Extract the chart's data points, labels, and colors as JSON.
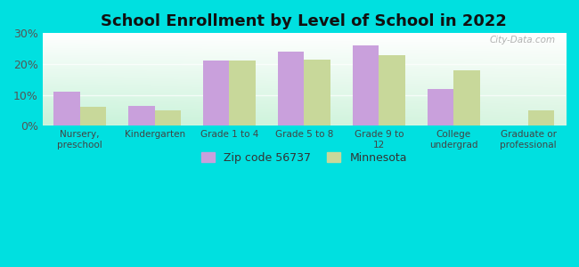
{
  "title": "School Enrollment by Level of School in 2022",
  "categories": [
    "Nursery,\npreschool",
    "Kindergarten",
    "Grade 1 to 4",
    "Grade 5 to 8",
    "Grade 9 to\n12",
    "College\nundergrad",
    "Graduate or\nprofessional"
  ],
  "zip_values": [
    11.0,
    6.5,
    21.0,
    24.0,
    26.0,
    12.0,
    0.0
  ],
  "mn_values": [
    6.0,
    5.0,
    21.0,
    21.5,
    23.0,
    18.0,
    5.0
  ],
  "zip_color": "#c9a0dc",
  "mn_color": "#c8d89a",
  "background_color": "#00e0e0",
  "ylim": [
    0,
    30
  ],
  "yticks": [
    0,
    10,
    20,
    30
  ],
  "ytick_labels": [
    "0%",
    "10%",
    "20%",
    "30%"
  ],
  "legend_zip_label": "Zip code 56737",
  "legend_mn_label": "Minnesota",
  "watermark": "City-Data.com",
  "bar_width": 0.35
}
